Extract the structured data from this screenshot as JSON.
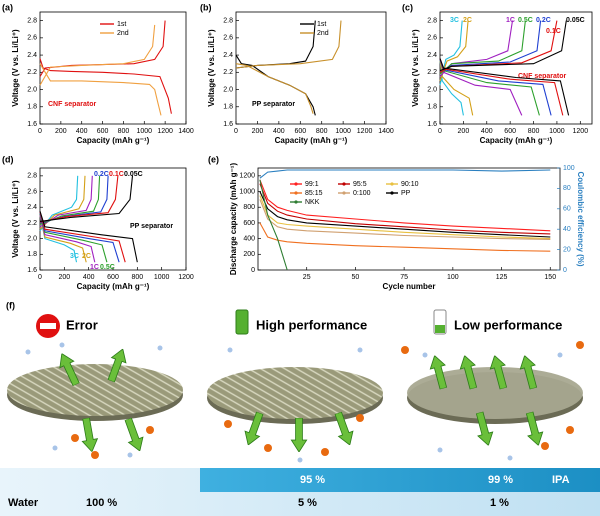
{
  "chart_data": [
    {
      "type": "line",
      "panel": "(a)",
      "annotation": "CNF separator",
      "xlabel": "Capacity (mAh g⁻¹)",
      "ylabel": "Voltage (V vs. Li/Li⁺)",
      "xlim": [
        0,
        1400
      ],
      "xticks": [
        0,
        200,
        400,
        600,
        800,
        1000,
        1200,
        1400
      ],
      "ylim": [
        1.6,
        2.9
      ],
      "yticks": [
        1.6,
        1.8,
        {
          "value": 2,
          "label": "2.0"
        },
        2.2,
        2.4,
        2.6,
        2.8
      ],
      "series": [
        {
          "name": "1st",
          "color": "#e01010",
          "x": [
            0,
            30,
            100,
            300,
            600,
            900,
            1150,
            1230,
            1260,
            null,
            0,
            50,
            300,
            600,
            900,
            1100,
            1180,
            1200
          ],
          "values": [
            2.36,
            2.25,
            2.22,
            2.21,
            2.2,
            2.18,
            2.15,
            1.9,
            1.72,
            null,
            2.15,
            2.25,
            2.28,
            2.29,
            2.3,
            2.35,
            2.5,
            2.8
          ]
        },
        {
          "name": "2nd",
          "color": "#f0a040",
          "x": [
            0,
            100,
            400,
            800,
            1050,
            1100,
            1130,
            1160,
            null,
            0,
            100,
            400,
            800,
            1000,
            1080,
            1100
          ],
          "values": [
            2.3,
            2.1,
            2.1,
            2.08,
            2.06,
            2.0,
            1.85,
            1.7,
            null,
            2.05,
            2.26,
            2.28,
            2.3,
            2.35,
            2.5,
            2.75
          ]
        }
      ]
    },
    {
      "type": "line",
      "panel": "(b)",
      "annotation": "PP separator",
      "xlabel": "Capacity (mAh g⁻¹)",
      "ylabel": "Voltage (V vs. Li/Li⁺)",
      "xlim": [
        0,
        1400
      ],
      "xticks": [
        0,
        200,
        400,
        600,
        800,
        1000,
        1200,
        1400
      ],
      "ylim": [
        1.6,
        2.9
      ],
      "yticks": [
        1.6,
        1.8,
        {
          "value": 2,
          "label": "2.0"
        },
        2.2,
        2.4,
        2.6,
        2.8
      ],
      "series": [
        {
          "name": "1st",
          "color": "#000000",
          "x": [
            0,
            50,
            150,
            300,
            500,
            650,
            720,
            740,
            null,
            0,
            200,
            500,
            650,
            720,
            740
          ],
          "values": [
            2.4,
            2.3,
            2.28,
            2.15,
            2.05,
            1.95,
            1.8,
            1.7,
            null,
            2.25,
            2.28,
            2.3,
            2.33,
            2.5,
            2.8
          ]
        },
        {
          "name": "2nd",
          "color": "#c8902a",
          "x": [
            0,
            100,
            300,
            500,
            650,
            700,
            720,
            null,
            0,
            200,
            600,
            900,
            960,
            980
          ],
          "values": [
            2.3,
            2.28,
            2.15,
            2.05,
            1.95,
            1.8,
            1.72,
            null,
            2.25,
            2.28,
            2.3,
            2.35,
            2.5,
            2.8
          ]
        }
      ]
    },
    {
      "type": "line",
      "panel": "(c)",
      "annotation": "CNF separator",
      "xlabel": "Capacity (mAh g⁻¹)",
      "ylabel": "Voltage (V vs. Li/Li⁺)",
      "xlim": [
        0,
        1300
      ],
      "xticks": [
        0,
        200,
        400,
        600,
        800,
        1000,
        1200
      ],
      "ylim": [
        1.6,
        2.9
      ],
      "yticks": [
        1.6,
        1.8,
        {
          "value": 2,
          "label": "2.0"
        },
        2.2,
        2.4,
        2.6,
        2.8
      ],
      "series": [
        {
          "name": "3C",
          "color": "#22c0e0",
          "x": [
            0,
            20,
            100,
            180,
            200,
            null,
            0,
            50,
            120,
            170,
            190
          ],
          "values": [
            2.35,
            2.1,
            1.95,
            1.85,
            1.7,
            null,
            2.05,
            2.35,
            2.4,
            2.5,
            2.8
          ]
        },
        {
          "name": "2C",
          "color": "#d4a017",
          "x": [
            0,
            20,
            120,
            250,
            280,
            null,
            0,
            60,
            150,
            220,
            240
          ],
          "values": [
            2.35,
            2.15,
            2.0,
            1.9,
            1.7,
            null,
            2.1,
            2.33,
            2.38,
            2.5,
            2.8
          ]
        },
        {
          "name": "1C",
          "color": "#a020c0",
          "x": [
            0,
            30,
            300,
            600,
            700,
            null,
            0,
            100,
            400,
            580,
            620
          ],
          "values": [
            2.35,
            2.2,
            2.05,
            2.0,
            1.7,
            null,
            2.15,
            2.3,
            2.35,
            2.45,
            2.8
          ]
        },
        {
          "name": "0.5C",
          "color": "#2ca02c",
          "x": [
            0,
            30,
            400,
            780,
            850,
            null,
            0,
            100,
            500,
            700,
            730
          ],
          "values": [
            2.35,
            2.22,
            2.08,
            2.03,
            1.7,
            null,
            2.18,
            2.3,
            2.33,
            2.45,
            2.8
          ]
        },
        {
          "name": "0.2C",
          "color": "#1f3fd1",
          "x": [
            0,
            30,
            500,
            880,
            950,
            null,
            0,
            100,
            600,
            830,
            860
          ],
          "values": [
            2.35,
            2.23,
            2.1,
            2.06,
            1.7,
            null,
            2.2,
            2.28,
            2.32,
            2.45,
            2.8
          ]
        },
        {
          "name": "0.1C",
          "color": "#e01010",
          "x": [
            0,
            30,
            600,
            980,
            1050,
            null,
            0,
            100,
            700,
            950,
            1000
          ],
          "values": [
            2.36,
            2.24,
            2.12,
            2.08,
            1.7,
            null,
            2.2,
            2.27,
            2.31,
            2.45,
            2.8
          ]
        },
        {
          "name": "0.05C",
          "color": "#000000",
          "x": [
            0,
            30,
            650,
            1030,
            1100,
            null,
            0,
            100,
            800,
            1040,
            1080
          ],
          "values": [
            2.36,
            2.25,
            2.14,
            2.1,
            1.7,
            null,
            2.22,
            2.27,
            2.3,
            2.45,
            2.8
          ]
        }
      ]
    },
    {
      "type": "line",
      "panel": "(d)",
      "annotation": "PP separator",
      "xlabel": "Capacity (mAh g⁻¹)",
      "ylabel": "Voltage (V vs. Li/Li⁺)",
      "xlim": [
        0,
        1200
      ],
      "xticks": [
        0,
        200,
        400,
        600,
        800,
        1000,
        1200
      ],
      "ylim": [
        1.6,
        2.9
      ],
      "yticks": [
        1.6,
        1.8,
        {
          "value": 2,
          "label": "2.0"
        },
        2.2,
        2.4,
        2.6,
        2.8
      ],
      "series": [
        {
          "name": "3C",
          "color": "#22c0e0",
          "x": [
            0,
            40,
            200,
            280,
            300,
            null,
            0,
            100,
            260,
            300,
            310
          ],
          "values": [
            2.3,
            2.0,
            1.92,
            1.85,
            1.7,
            null,
            2.1,
            2.3,
            2.4,
            2.5,
            2.8
          ]
        },
        {
          "name": "2C",
          "color": "#d4a017",
          "x": [
            0,
            40,
            250,
            350,
            380,
            null,
            0,
            120,
            320,
            360,
            370
          ],
          "values": [
            2.3,
            2.02,
            1.94,
            1.88,
            1.7,
            null,
            2.12,
            2.3,
            2.38,
            2.5,
            2.8
          ]
        },
        {
          "name": "1C",
          "color": "#a020c0",
          "x": [
            0,
            40,
            300,
            420,
            450,
            null,
            0,
            150,
            380,
            420,
            430
          ],
          "values": [
            2.3,
            2.05,
            1.96,
            1.9,
            1.7,
            null,
            2.15,
            2.3,
            2.36,
            2.5,
            2.8
          ]
        },
        {
          "name": "0.5C",
          "color": "#2ca02c",
          "x": [
            0,
            40,
            350,
            510,
            550,
            null,
            0,
            180,
            440,
            480,
            490
          ],
          "values": [
            2.32,
            2.08,
            1.98,
            1.92,
            1.7,
            null,
            2.18,
            2.29,
            2.35,
            2.5,
            2.8
          ]
        },
        {
          "name": "0.2C",
          "color": "#1f3fd1",
          "x": [
            0,
            40,
            400,
            600,
            650,
            null,
            0,
            200,
            500,
            550,
            560
          ],
          "values": [
            2.33,
            2.1,
            2.0,
            1.95,
            1.7,
            null,
            2.2,
            2.28,
            2.34,
            2.5,
            2.8
          ]
        },
        {
          "name": "0.1C",
          "color": "#e01010",
          "x": [
            0,
            40,
            450,
            650,
            700,
            null,
            0,
            220,
            560,
            620,
            640
          ],
          "values": [
            2.34,
            2.12,
            2.02,
            1.97,
            1.7,
            null,
            2.21,
            2.28,
            2.33,
            2.5,
            2.8
          ]
        },
        {
          "name": "0.05C",
          "color": "#000000",
          "x": [
            0,
            40,
            500,
            760,
            800,
            null,
            0,
            250,
            650,
            740,
            760
          ],
          "values": [
            2.35,
            2.15,
            2.05,
            2.0,
            1.7,
            null,
            2.22,
            2.27,
            2.32,
            2.5,
            2.8
          ]
        }
      ]
    },
    {
      "type": "line",
      "panel": "(e)",
      "xlabel": "Cycle number",
      "ylabel": "Discharge capacity (mAh g⁻¹)",
      "y2label": "Coulombic efficiency (%)",
      "xlim": [
        0,
        155
      ],
      "xticks": [
        25,
        50,
        75,
        100,
        125,
        150
      ],
      "ylim": [
        0,
        1300
      ],
      "yticks": [
        0,
        200,
        400,
        600,
        800,
        1000,
        1200
      ],
      "y2lim": [
        0,
        100
      ],
      "y2ticks": [
        0,
        20,
        40,
        60,
        80,
        100
      ],
      "x": [
        1,
        5,
        10,
        15,
        25,
        50,
        75,
        100,
        125,
        150
      ],
      "series": [
        {
          "name": "99:1",
          "color": "#ff2020",
          "values": [
            1150,
            900,
            800,
            760,
            700,
            650,
            600,
            560,
            530,
            500
          ]
        },
        {
          "name": "95:5",
          "color": "#c00000",
          "values": [
            1100,
            850,
            750,
            700,
            650,
            590,
            550,
            510,
            480,
            460
          ]
        },
        {
          "name": "90:10",
          "color": "#e8c040",
          "values": [
            950,
            700,
            600,
            580,
            560,
            520,
            480,
            450,
            420,
            400
          ]
        },
        {
          "name": "85:15",
          "color": "#f07020",
          "values": [
            600,
            420,
            380,
            360,
            340,
            310,
            290,
            270,
            250,
            240
          ]
        },
        {
          "name": "0:100",
          "color": "#d0a070",
          "values": [
            900,
            650,
            550,
            520,
            500,
            470,
            440,
            420,
            400,
            390
          ]
        },
        {
          "name": "PP",
          "color": "#000000",
          "values": [
            1000,
            780,
            680,
            640,
            600,
            560,
            520,
            480,
            450,
            420
          ]
        },
        {
          "name": "NKK",
          "color": "#2e7d32",
          "values": [
            1150,
            700,
            400,
            0,
            null,
            null,
            null,
            null,
            null,
            null
          ]
        },
        {
          "color": "#2a7fc0",
          "axis": "y2",
          "values": [
            90,
            96,
            97,
            98,
            98,
            98,
            98,
            98,
            97,
            98
          ]
        }
      ]
    }
  ],
  "illustration": {
    "label": "(f)",
    "states": [
      {
        "title": "Error"
      },
      {
        "title": "High performance"
      },
      {
        "title": "Low performance"
      }
    ],
    "ipa": {
      "name": "IPA",
      "values": [
        "95 %",
        "99 %"
      ]
    },
    "water": {
      "name": "Water",
      "values": [
        "100 %",
        "5 %",
        "1 %"
      ]
    }
  }
}
